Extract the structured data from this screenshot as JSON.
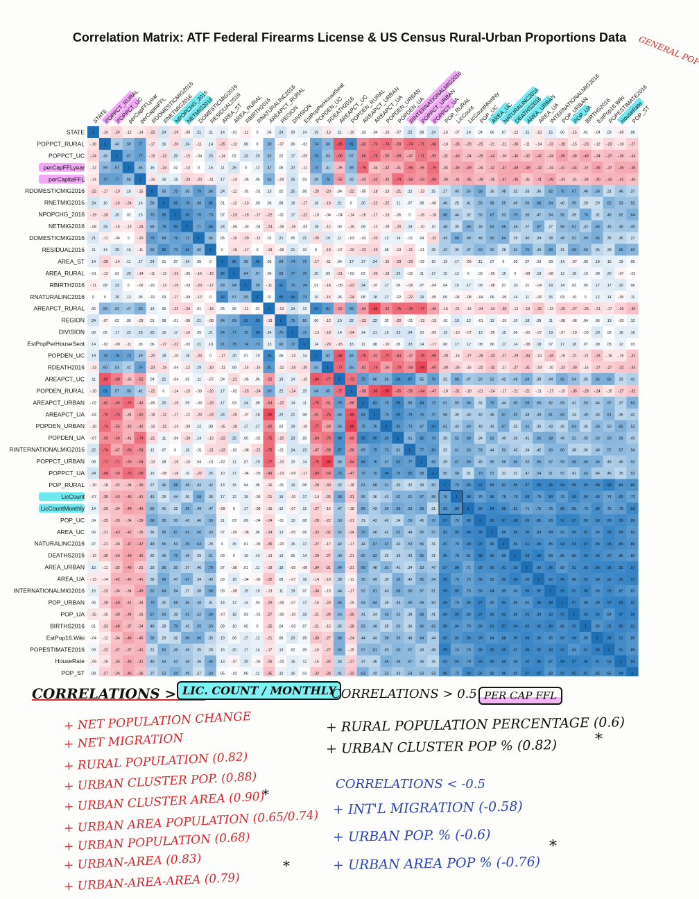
{
  "title": "Correlation Matrix: ATF Federal Firearms License & US Census Rural-Urban Proportions Data",
  "chart_data": {
    "type": "heatmap",
    "title": "Correlation Matrix: ATF Federal Firearms License & US Census Rural-Urban Proportions Data",
    "variables": [
      "STATE",
      "POPPCT_RURAL",
      "POPPCT_UC",
      "perCapFFLyear",
      "perCapitaFFL",
      "RDOMESTICMIG2016",
      "RNETMIG2016",
      "NPOPCHG_2016",
      "NETMIG2016",
      "DOMESTICMIG2016",
      "RESIDUAL2016",
      "AREA_ST",
      "AREA_RURAL",
      "RBIRTH2016",
      "RNATURALINC2016",
      "AREAPCT_RURAL",
      "REGION",
      "DIVISION",
      "EstPopPerHouseSeat",
      "POPDEN_UC",
      "RDEATH2016",
      "AREAPCT_UC",
      "POPDEN_RURAL",
      "AREAPCT_URBAN",
      "AREAPCT_UA",
      "POPDEN_URBAN",
      "POPDEN_UA",
      "RINTERNATIONALMIG2016",
      "POPPCT_URBAN",
      "POPPCT_UA",
      "POP_RURAL",
      "LicCount",
      "LicCountMonthly",
      "POP_UC",
      "AREA_UC",
      "NATURALINC2016",
      "DEATHS2016",
      "AREA_URBAN",
      "AREA_UA",
      "INTERNATIONALMIG2016",
      "POP_URBAN",
      "POP_UA",
      "BIRTHS2016",
      "EstPop16.Wiki",
      "POPESTIMATE2016",
      "HouseRate",
      "POP_ST"
    ],
    "color_scale": {
      "negative": "#e8364a",
      "zero": "#ffffff",
      "positive": "#2f7fc2"
    },
    "value_range": [
      -1,
      1
    ],
    "cell_values_note": "Each cell prints its correlation value rounded to two decimals"
  },
  "header_highlights": {
    "pink": [
      "POPPCT_RURAL",
      "POPPCT_UC",
      "RINTERNATIONALMIG2016",
      "POPPCT_URBAN",
      "POPPCT_UA"
    ],
    "cyan": [
      "NPOPCHG_2016",
      "NETMIG2016",
      "AREA_UC",
      "NATURALINC2016",
      "DEATHS2016",
      "AREA_URBAN",
      "POP_UA",
      "HouseRate"
    ]
  },
  "row_highlights": {
    "pink": [
      "perCapFFLyear",
      "perCapitaFFL"
    ],
    "cyan": [
      "LicCount",
      "LicCountMonthly"
    ]
  },
  "annotations": {
    "general_population": "GENERAL POPULATION",
    "left_title": "CORRELATIONS > 0.6",
    "left_title_box": "LIC. COUNT / MONTHLY",
    "left_items": [
      "+ NET POPULATION CHANGE",
      "+ NET MIGRATION",
      "+ RURAL POPULATION (0.82)",
      "+ URBAN CLUSTER POP. (0.88)",
      "+ URBAN CLUSTER AREA (0.90)",
      "+ URBAN AREA POPULATION (0.65/0.74)",
      "+ URBAN POPULATION (0.68)",
      "+ URBAN-AREA (0.83)",
      "+ URBAN-AREA-AREA (0.79)"
    ],
    "left_stars": [
      "*",
      "*"
    ],
    "right_title": "CORRELATIONS > 0.5",
    "right_title_box": "PER CAP FFL",
    "right_items": [
      "+ RURAL POPULATION PERCENTAGE (0.6)",
      "+ URBAN CLUSTER POP % (0.82)"
    ],
    "right_title2": "CORRELATIONS < -0.5",
    "right_items2": [
      "+ INT'L MIGRATION (-0.58)",
      "+ URBAN POP. % (-0.6)",
      "+ URBAN AREA POP % (-0.76)"
    ],
    "right_stars": [
      "*",
      "*"
    ]
  }
}
